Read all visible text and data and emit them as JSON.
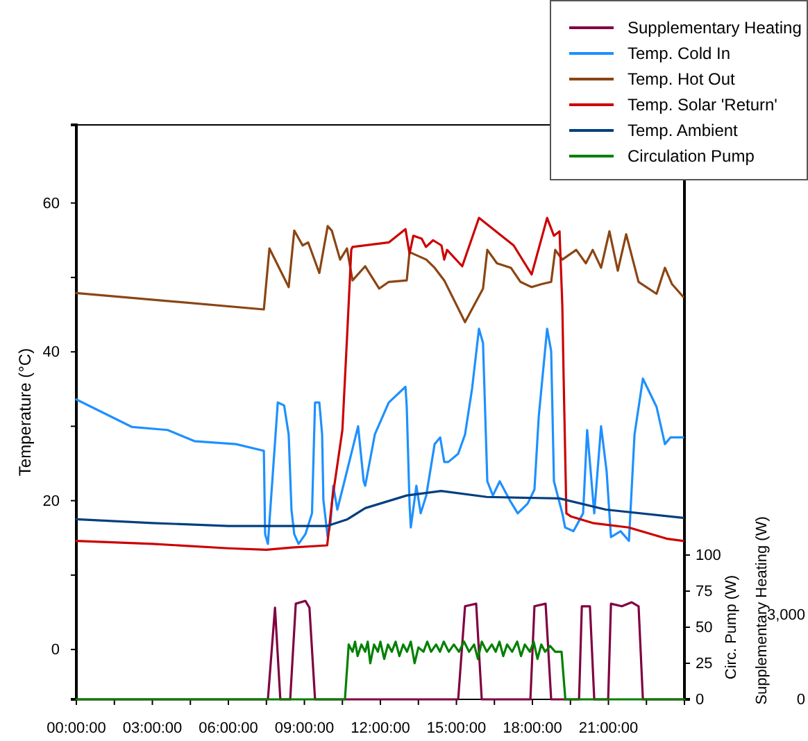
{
  "chart_data": {
    "type": "line",
    "ylabel": "Temperature (°C)",
    "y2label": "Circ. Pump (W)",
    "y3label": "Supplementary Heating (W)",
    "xlim": [
      0,
      24
    ],
    "xticks": [
      {
        "value": 0,
        "label": "00:00:00"
      },
      {
        "value": 1.5,
        "label": null
      },
      {
        "value": 3,
        "label": "03:00:00"
      },
      {
        "value": 4.5,
        "label": null
      },
      {
        "value": 6,
        "label": "06:00:00"
      },
      {
        "value": 7.5,
        "label": null
      },
      {
        "value": 9,
        "label": "09:00:00"
      },
      {
        "value": 10.5,
        "label": null
      },
      {
        "value": 12,
        "label": "12:00:00"
      },
      {
        "value": 13.5,
        "label": null
      },
      {
        "value": 15,
        "label": "15:00:00"
      },
      {
        "value": 16.5,
        "label": null
      },
      {
        "value": 18,
        "label": "18:00:00"
      },
      {
        "value": 19.5,
        "label": null
      },
      {
        "value": 21,
        "label": "21:00:00"
      },
      {
        "value": 22.5,
        "label": null
      }
    ],
    "ylim": [
      -6.7,
      70.5
    ],
    "yticks": [
      0,
      {
        "value": 10,
        "label": null
      },
      20,
      {
        "value": 30,
        "label": null
      },
      40,
      {
        "value": 50,
        "label": null
      },
      60
    ],
    "y2lim": [
      0,
      398
    ],
    "y2ticks": [
      0,
      25,
      50,
      75,
      100
    ],
    "y3lim": [
      0,
      20360
    ],
    "y3ticks": [
      0,
      {
        "value": 3000,
        "label": "3,000"
      }
    ],
    "legend": "top right",
    "series": [
      {
        "name": "Supplementary Heating",
        "color": "#800040",
        "axis": "y3",
        "x": [
          0,
          7.56,
          7.84,
          8.05,
          8.44,
          8.66,
          9.04,
          9.2,
          9.42,
          15.07,
          15.34,
          15.78,
          16.0,
          17.92,
          18.08,
          18.52,
          18.74,
          19.84,
          19.95,
          20.27,
          20.44,
          20.99,
          21.1,
          21.53,
          21.92,
          22.19,
          22.36,
          24
        ],
        "values": [
          0,
          0,
          3250,
          0,
          0,
          3390,
          3490,
          3250,
          0,
          0,
          3300,
          3390,
          0,
          0,
          3300,
          3390,
          0,
          0,
          3300,
          3300,
          0,
          0,
          3390,
          3300,
          3440,
          3300,
          0,
          0
        ]
      },
      {
        "name": "Temp. Cold In",
        "color": "#1e90ff",
        "x": [
          0,
          2.2,
          3.6,
          4.66,
          6.3,
          7.4,
          7.45,
          7.56,
          7.95,
          8.2,
          8.38,
          8.49,
          8.6,
          8.77,
          9.04,
          9.3,
          9.42,
          9.59,
          9.7,
          9.75,
          9.92,
          10.03,
          10.14,
          10.3,
          10.58,
          11.12,
          11.34,
          11.4,
          11.78,
          12.33,
          12.99,
          13.04,
          13.15,
          13.2,
          13.42,
          13.59,
          13.81,
          14.14,
          14.36,
          14.52,
          14.68,
          15.07,
          15.34,
          15.62,
          15.89,
          16.05,
          16.22,
          16.44,
          16.71,
          17.1,
          17.42,
          17.81,
          18.08,
          18.25,
          18.58,
          18.74,
          18.85,
          19.18,
          19.29,
          19.62,
          20.0,
          20.16,
          20.44,
          20.71,
          20.93,
          21.1,
          21.48,
          21.81,
          22.03,
          22.36,
          22.9,
          23.23,
          23.45,
          23.95
        ],
        "values": [
          33.6,
          29.9,
          29.5,
          28.0,
          27.6,
          26.7,
          15.5,
          14.2,
          33.2,
          32.8,
          28.9,
          18.8,
          15.5,
          14.2,
          15.5,
          18.3,
          33.2,
          33.2,
          28.9,
          20.1,
          15.1,
          17.0,
          22.0,
          18.8,
          22.6,
          30.0,
          22.6,
          22.0,
          28.9,
          33.2,
          35.3,
          32.6,
          19.6,
          16.4,
          22.0,
          18.3,
          20.7,
          27.6,
          28.5,
          25.2,
          25.2,
          26.3,
          28.9,
          35.1,
          43.1,
          41.2,
          22.6,
          20.7,
          22.6,
          20.1,
          18.3,
          19.6,
          21.5,
          31.3,
          43.1,
          40.1,
          22.6,
          18.3,
          16.4,
          15.9,
          18.3,
          29.5,
          18.3,
          30.0,
          23.9,
          15.1,
          15.9,
          14.6,
          28.9,
          36.4,
          32.6,
          27.6,
          28.5,
          28.5
        ]
      },
      {
        "name": "Temp. Hot Out",
        "color": "#8b4513",
        "x": [
          0,
          7.4,
          7.62,
          8.38,
          8.6,
          8.93,
          9.15,
          9.59,
          9.92,
          10.08,
          10.41,
          10.68,
          10.9,
          11.4,
          11.95,
          12.33,
          13.04,
          13.15,
          13.81,
          14.14,
          14.52,
          15.34,
          16.05,
          16.22,
          16.6,
          17.15,
          17.53,
          17.97,
          18.36,
          18.74,
          18.9,
          19.18,
          19.73,
          20.11,
          20.38,
          20.71,
          21.04,
          21.37,
          21.7,
          22.19,
          22.9,
          23.23,
          23.51,
          23.95
        ],
        "values": [
          47.9,
          45.7,
          53.9,
          48.7,
          56.3,
          54.3,
          54.7,
          50.6,
          56.9,
          56.3,
          52.4,
          53.9,
          49.6,
          51.5,
          48.5,
          49.4,
          49.6,
          53.4,
          52.4,
          51.3,
          49.6,
          44.0,
          48.5,
          53.7,
          51.9,
          51.3,
          49.4,
          48.7,
          49.1,
          49.4,
          53.7,
          52.4,
          53.7,
          51.9,
          53.7,
          51.3,
          56.2,
          50.9,
          55.8,
          49.4,
          47.8,
          51.3,
          49.1,
          47.4
        ]
      },
      {
        "name": "Temp. Solar 'Return'",
        "color": "#cc0000",
        "x": [
          0,
          3,
          6,
          7.5,
          8.5,
          9.9,
          10.1,
          10.5,
          10.7,
          10.85,
          10.9,
          12.33,
          12.99,
          13.15,
          13.3,
          13.63,
          13.8,
          14.08,
          14.41,
          14.52,
          14.63,
          15.23,
          15.89,
          17.26,
          17.97,
          18.58,
          18.85,
          19.07,
          19.18,
          19.23,
          19.34,
          19.51,
          20.38,
          21.8,
          23.29,
          23.95
        ],
        "values": [
          14.6,
          14.2,
          13.6,
          13.4,
          13.7,
          14.0,
          20.1,
          29.5,
          43.1,
          53.7,
          54.1,
          54.7,
          56.5,
          53.2,
          55.6,
          55.2,
          54.1,
          55.0,
          54.3,
          52.4,
          53.7,
          51.5,
          58.0,
          54.3,
          50.4,
          58.0,
          55.6,
          56.2,
          46.3,
          36.9,
          18.3,
          17.9,
          17.0,
          16.4,
          14.9,
          14.6
        ]
      },
      {
        "name": "Temp. Ambient",
        "color": "#003f7f",
        "x": [
          0,
          3,
          6,
          9.9,
          10.7,
          11.4,
          13.04,
          14.4,
          16.2,
          19.07,
          20.9,
          23.95
        ],
        "values": [
          17.5,
          17.0,
          16.6,
          16.6,
          17.5,
          19.0,
          20.7,
          21.3,
          20.5,
          20.3,
          18.8,
          17.7
        ]
      },
      {
        "name": "Circulation Pump",
        "color": "#008000",
        "axis": "y2",
        "x": [
          0,
          10.6,
          10.75,
          10.9,
          11.0,
          11.1,
          11.25,
          11.4,
          11.5,
          11.6,
          11.75,
          11.9,
          12.0,
          12.15,
          12.3,
          12.45,
          12.6,
          12.75,
          12.9,
          13.05,
          13.2,
          13.35,
          13.5,
          13.7,
          13.85,
          14.0,
          14.2,
          14.35,
          14.5,
          14.7,
          14.9,
          15.1,
          15.3,
          15.5,
          15.7,
          15.85,
          16.0,
          16.2,
          16.4,
          16.55,
          16.7,
          16.85,
          17.0,
          17.2,
          17.4,
          17.55,
          17.7,
          17.9,
          18.05,
          18.2,
          18.35,
          18.5,
          18.7,
          18.9,
          19.15,
          19.3,
          24
        ],
        "values": [
          0,
          0,
          38,
          33,
          40,
          30,
          38,
          33,
          40,
          25,
          38,
          33,
          40,
          28,
          38,
          33,
          40,
          30,
          38,
          33,
          40,
          25,
          36,
          33,
          40,
          33,
          38,
          33,
          40,
          33,
          38,
          33,
          40,
          33,
          38,
          28,
          40,
          33,
          38,
          33,
          40,
          30,
          38,
          33,
          40,
          30,
          38,
          33,
          40,
          28,
          38,
          33,
          37,
          33,
          33,
          0,
          0
        ]
      }
    ]
  }
}
